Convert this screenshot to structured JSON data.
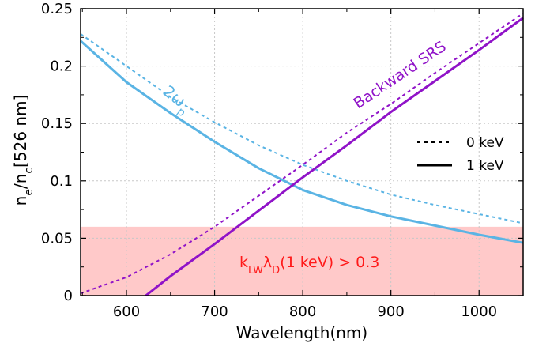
{
  "chart_data": {
    "type": "line",
    "xlabel": "Wavelength(nm)",
    "ylabel": {
      "main": "n",
      "sub1": "e",
      "mid": "/n",
      "sub2": "c",
      "tail": "[526 nm]"
    },
    "xlim": [
      548,
      1050
    ],
    "ylim": [
      0,
      0.25
    ],
    "xticks": [
      600,
      700,
      800,
      900,
      1000
    ],
    "yticks": [
      0,
      0.05,
      0.1,
      0.15,
      0.2,
      0.25
    ],
    "ytick_labels": [
      "0",
      "0.05",
      "0.1",
      "0.15",
      "0.2",
      "0.25"
    ],
    "grid": true,
    "legend_position": "right-middle",
    "legend": [
      {
        "label": "0 keV",
        "style": "dashed"
      },
      {
        "label": "1 keV",
        "style": "solid"
      }
    ],
    "shaded_region": {
      "y_from": 0,
      "y_to": 0.06,
      "color": "#ffc9c9",
      "label": {
        "pre": "k",
        "sub1": "LW",
        "mid": "λ",
        "sub2": "D",
        "tail": "(1 keV) > 0.3"
      },
      "label_color": "#ff1a1a"
    },
    "annotations": [
      {
        "text": "2ω",
        "sub": "p",
        "color": "#5ab4e4"
      },
      {
        "text": "Backward SRS",
        "color": "#9013c8"
      }
    ],
    "series": [
      {
        "family": "2ω_p",
        "temperature": "0 keV",
        "color": "#5ab4e4",
        "style": "dashed",
        "x": [
          548,
          600,
          650,
          700,
          750,
          800,
          850,
          900,
          950,
          1000,
          1050
        ],
        "y": [
          0.228,
          0.2,
          0.173,
          0.151,
          0.131,
          0.114,
          0.1,
          0.088,
          0.079,
          0.071,
          0.063
        ]
      },
      {
        "family": "2ω_p",
        "temperature": "1 keV",
        "color": "#5ab4e4",
        "style": "solid",
        "x": [
          548,
          600,
          650,
          700,
          750,
          800,
          850,
          900,
          950,
          1000,
          1050
        ],
        "y": [
          0.222,
          0.186,
          0.159,
          0.134,
          0.111,
          0.092,
          0.079,
          0.069,
          0.061,
          0.053,
          0.046
        ]
      },
      {
        "family": "Backward SRS",
        "temperature": "0 keV",
        "color": "#9013c8",
        "style": "dashed",
        "x": [
          548,
          600,
          650,
          700,
          750,
          800,
          850,
          900,
          950,
          1000,
          1050
        ],
        "y": [
          0.002,
          0.016,
          0.036,
          0.06,
          0.087,
          0.114,
          0.142,
          0.167,
          0.194,
          0.22,
          0.246
        ]
      },
      {
        "family": "Backward SRS",
        "temperature": "1 keV",
        "color": "#9013c8",
        "style": "solid",
        "x": [
          622,
          650,
          700,
          750,
          800,
          850,
          900,
          950,
          1000,
          1050
        ],
        "y": [
          0.0,
          0.017,
          0.045,
          0.074,
          0.103,
          0.131,
          0.16,
          0.187,
          0.214,
          0.242
        ]
      }
    ]
  }
}
